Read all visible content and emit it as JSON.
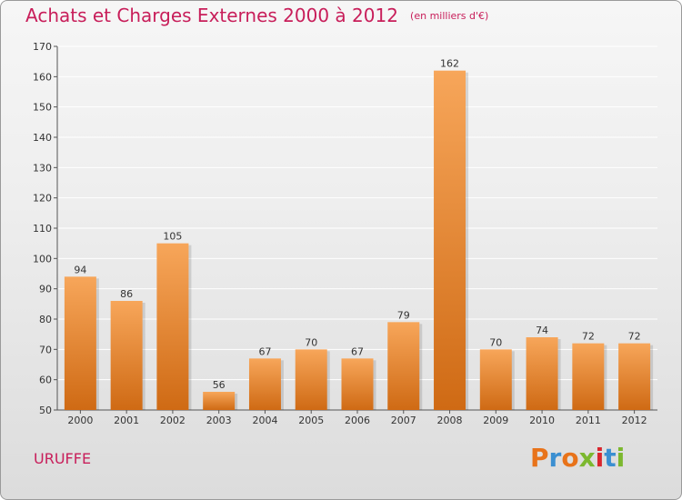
{
  "header": {
    "title": "Achats et Charges Externes 2000 à 2012",
    "unit": "(en milliers d'€)"
  },
  "footer": {
    "commune": "URUFFE",
    "logo_text": "Proxiti",
    "logo_colors": [
      "#e8731a",
      "#3b8fd1",
      "#e8731a",
      "#7cb82f",
      "#d9262e",
      "#3b8fd1",
      "#7cb82f"
    ]
  },
  "colors": {
    "title": "#c81e5a",
    "bar_light": "#f7a65a",
    "bar_dark": "#cf6a14",
    "grid": "#ffffff"
  },
  "chart_data": {
    "type": "bar",
    "title": "Achats et Charges Externes 2000 à 2012",
    "subtitle": "(en milliers d'€)",
    "categories": [
      "2000",
      "2001",
      "2002",
      "2003",
      "2004",
      "2005",
      "2006",
      "2007",
      "2008",
      "2009",
      "2010",
      "2011",
      "2012"
    ],
    "values": [
      94,
      86,
      105,
      56,
      67,
      70,
      67,
      79,
      162,
      70,
      74,
      72,
      72
    ],
    "ylim": [
      50,
      170
    ],
    "yticks": [
      50,
      60,
      70,
      80,
      90,
      100,
      110,
      120,
      130,
      140,
      150,
      160,
      170
    ],
    "grid": true,
    "xlabel": "",
    "ylabel": ""
  }
}
